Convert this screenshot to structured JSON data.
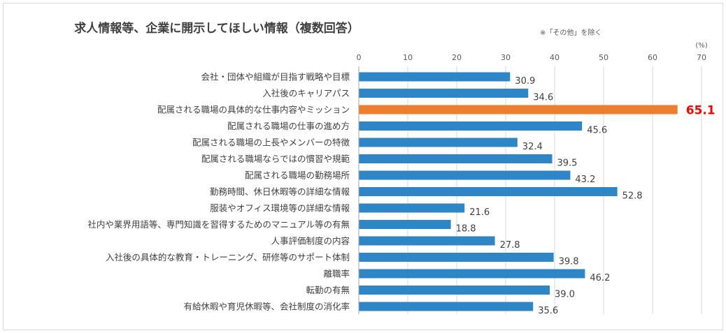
{
  "chart_data": {
    "type": "bar",
    "orientation": "horizontal",
    "title": "求人情報等、企業に開示してほしい情報（複数回答）",
    "note": "※「その他」を除く",
    "unit": "(%)",
    "xlim": [
      0,
      70
    ],
    "ticks": [
      0,
      10,
      20,
      30,
      40,
      50,
      60,
      70
    ],
    "grid": true,
    "colors": {
      "default": "#2e86c7",
      "highlight": "#ed7d31",
      "highlight_label": "#ff0000"
    },
    "highlight_index": 2,
    "categories": [
      "会社・団体や組織が目指す戦略や目標",
      "入社後のキャリアパス",
      "配属される職場の具体的な仕事内容やミッション",
      "配属される職場の仕事の進め方",
      "配属される職場の上長やメンバーの特徴",
      "配属される職場ならではの慣習や規範",
      "配属される職場の勤務場所",
      "勤務時間、休日休暇等の詳細な情報",
      "服装やオフィス環境等の詳細な情報",
      "社内や業界用語等、専門知識を習得するためのマニュアル等の有無",
      "人事評価制度の内容",
      "入社後の具体的な教育・トレーニング、研修等のサポート体制",
      "離職率",
      "転勤の有無",
      "有給休暇や育児休暇等、会社制度の消化率"
    ],
    "values": [
      30.9,
      34.6,
      65.1,
      45.6,
      32.4,
      39.5,
      43.2,
      52.8,
      21.6,
      18.8,
      27.8,
      39.8,
      46.2,
      39.0,
      35.6
    ]
  }
}
